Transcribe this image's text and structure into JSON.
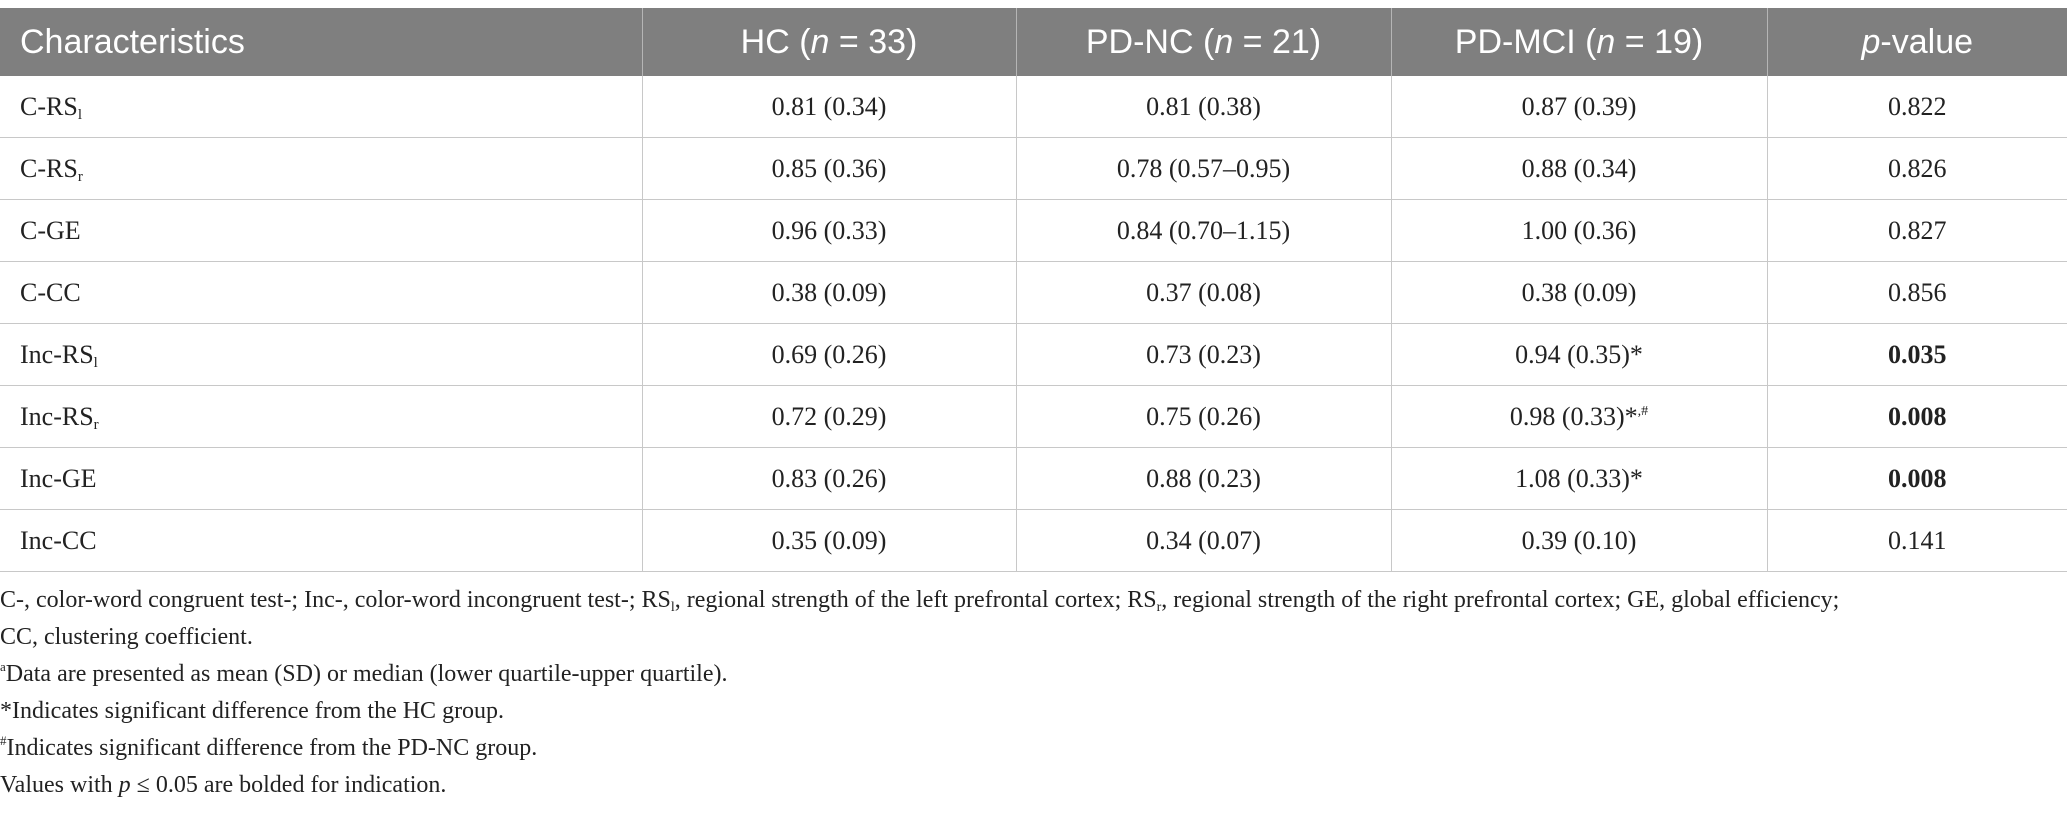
{
  "table": {
    "headers": [
      {
        "pre": "Characteristics",
        "ital": "",
        "post": ""
      },
      {
        "pre": "HC (",
        "ital": "n",
        "post": " = 33)"
      },
      {
        "pre": "PD-NC (",
        "ital": "n",
        "post": " = 21)"
      },
      {
        "pre": "PD-MCI (",
        "ital": "n",
        "post": " = 19)"
      },
      {
        "pre": "",
        "ital": "p",
        "post": "-value"
      }
    ],
    "rows": [
      {
        "label": "C-RS",
        "sub": "l",
        "hc": "0.81 (0.34)",
        "pdnc": "0.81 (0.38)",
        "pdmci": "0.87 (0.39)",
        "pdmci_sup": "",
        "p": "0.822",
        "p_bold": false
      },
      {
        "label": "C-RS",
        "sub": "r",
        "hc": "0.85 (0.36)",
        "pdnc": "0.78 (0.57–0.95)",
        "pdmci": "0.88 (0.34)",
        "pdmci_sup": "",
        "p": "0.826",
        "p_bold": false
      },
      {
        "label": "C-GE",
        "sub": "",
        "hc": "0.96 (0.33)",
        "pdnc": "0.84 (0.70–1.15)",
        "pdmci": "1.00 (0.36)",
        "pdmci_sup": "",
        "p": "0.827",
        "p_bold": false
      },
      {
        "label": "C-CC",
        "sub": "",
        "hc": "0.38 (0.09)",
        "pdnc": "0.37 (0.08)",
        "pdmci": "0.38 (0.09)",
        "pdmci_sup": "",
        "p": "0.856",
        "p_bold": false
      },
      {
        "label": "Inc-RS",
        "sub": "l",
        "hc": "0.69 (0.26)",
        "pdnc": "0.73 (0.23)",
        "pdmci": "0.94 (0.35)*",
        "pdmci_sup": "",
        "p": "0.035",
        "p_bold": true
      },
      {
        "label": "Inc-RS",
        "sub": "r",
        "hc": "0.72 (0.29)",
        "pdnc": "0.75 (0.26)",
        "pdmci": "0.98 (0.33)*",
        "pdmci_sup": ",#",
        "p": "0.008",
        "p_bold": true
      },
      {
        "label": "Inc-GE",
        "sub": "",
        "hc": "0.83 (0.26)",
        "pdnc": "0.88 (0.23)",
        "pdmci": "1.08 (0.33)*",
        "pdmci_sup": "",
        "p": "0.008",
        "p_bold": true
      },
      {
        "label": "Inc-CC",
        "sub": "",
        "hc": "0.35 (0.09)",
        "pdnc": "0.34 (0.07)",
        "pdmci": "0.39 (0.10)",
        "pdmci_sup": "",
        "p": "0.141",
        "p_bold": false
      }
    ]
  },
  "notes": {
    "abbrev": {
      "part1": "C-, color-word congruent test-; Inc-, color-word incongruent test-; RS",
      "sub1": "l",
      "part2": ", regional strength of the left prefrontal cortex; RS",
      "sub2": "r",
      "part3": ", regional strength of the right prefrontal cortex; GE, global efficiency;",
      "line2": "CC, clustering coefficient."
    },
    "footnote_a": {
      "mark": "a",
      "text": "Data are presented as mean (SD) or median (lower quartile-upper quartile)."
    },
    "footnote_star": {
      "text": "*Indicates significant difference from the HC group."
    },
    "footnote_hash": {
      "mark": "#",
      "text": "Indicates significant difference from the PD-NC group."
    },
    "bold_note": {
      "pre": "Values with ",
      "ital": "p",
      "post": " ≤ 0.05 are bolded for indication."
    }
  }
}
